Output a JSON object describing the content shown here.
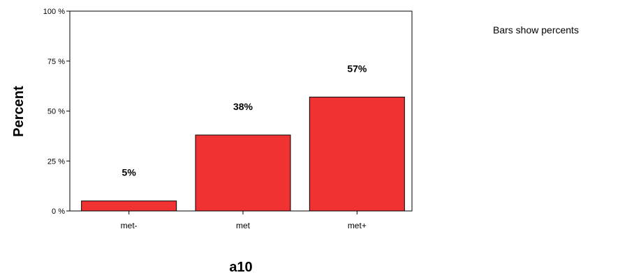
{
  "chart_data": {
    "type": "bar",
    "categories": [
      "met-",
      "met",
      "met+"
    ],
    "values": [
      5,
      38,
      57
    ],
    "data_labels": [
      "5%",
      "38%",
      "57%"
    ],
    "title": "",
    "xlabel": "a10",
    "ylabel": "Percent",
    "ylim": [
      0,
      100
    ],
    "yticks": [
      0,
      25,
      50,
      75,
      100
    ],
    "ytick_labels": [
      "0 %",
      "25 %",
      "50 %",
      "75 %",
      "100 %"
    ],
    "grid": false,
    "bar_color": "#f03232",
    "note": "Bars show percents"
  }
}
